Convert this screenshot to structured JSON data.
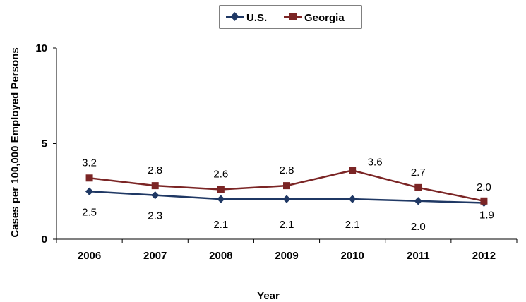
{
  "chart_data": {
    "type": "line",
    "title": "",
    "xlabel": "Year",
    "ylabel": "Cases  per 100,000 Employed Persons",
    "ylim": [
      0,
      10
    ],
    "yticks": [
      0,
      5,
      10
    ],
    "categories": [
      "2006",
      "2007",
      "2008",
      "2009",
      "2010",
      "2011",
      "2012"
    ],
    "legend_position": "top-center",
    "series": [
      {
        "name": "U.S.",
        "color": "#1f3864",
        "marker": "diamond",
        "values": [
          2.5,
          2.3,
          2.1,
          2.1,
          2.1,
          2.0,
          1.9
        ],
        "labels": [
          "2.5",
          "2.3",
          "2.1",
          "2.1",
          "2.1",
          "2.0",
          "1.9"
        ]
      },
      {
        "name": "Georgia",
        "color": "#7b2525",
        "marker": "square",
        "values": [
          3.2,
          2.8,
          2.6,
          2.8,
          3.6,
          2.7,
          2.0
        ],
        "labels": [
          "3.2",
          "2.8",
          "2.6",
          "2.8",
          "3.6",
          "2.7",
          "2.0"
        ]
      }
    ]
  }
}
